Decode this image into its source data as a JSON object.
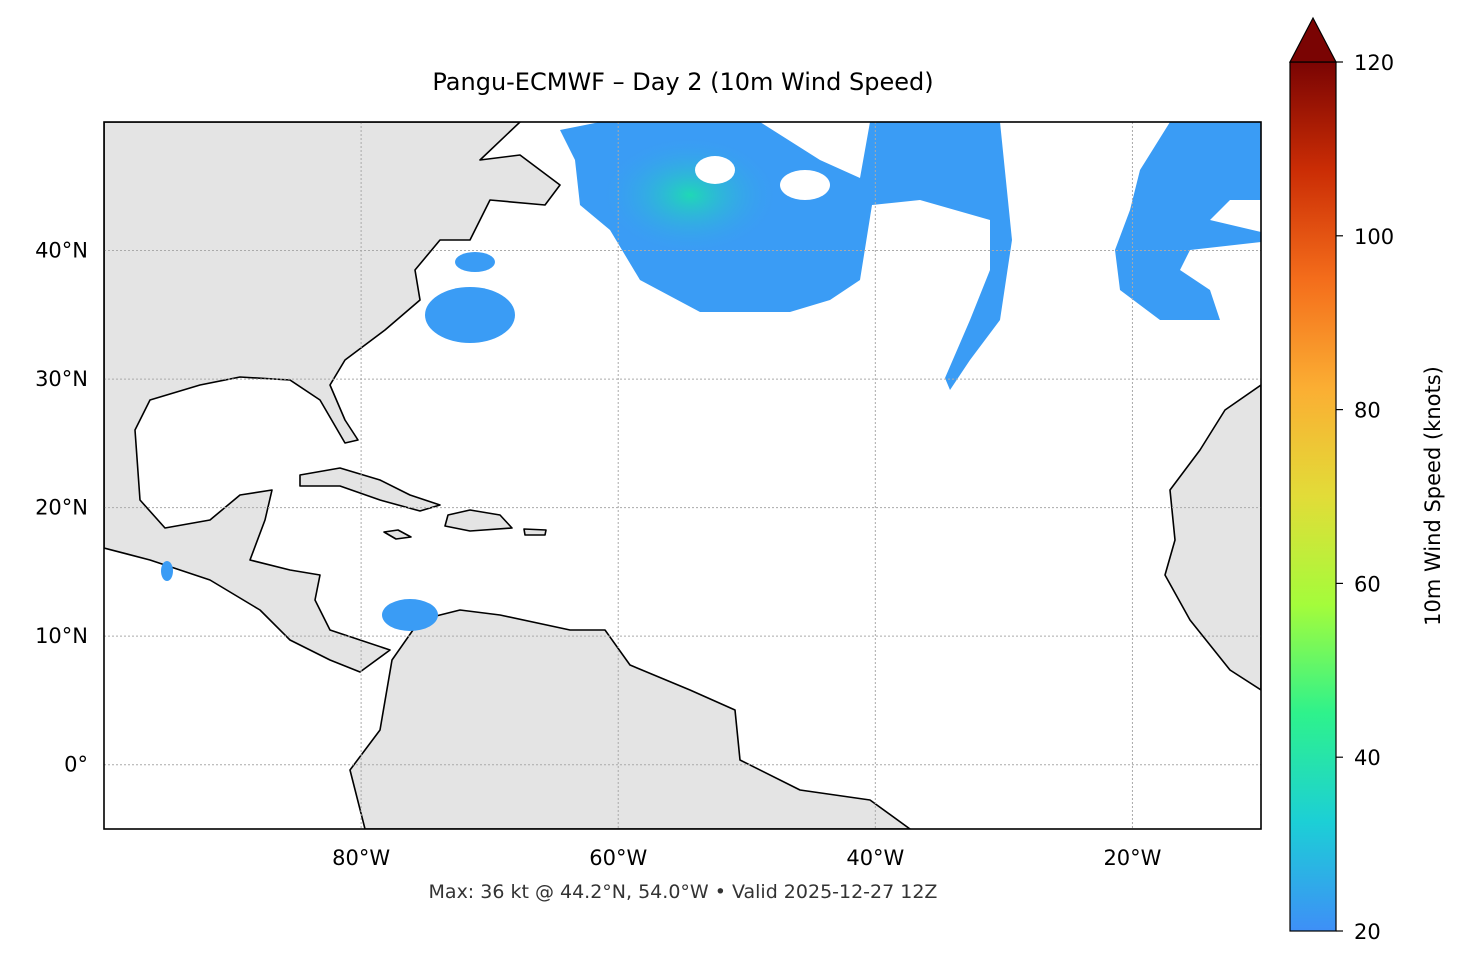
{
  "chart_data": {
    "type": "map",
    "title": "Pangu-ECMWF – Day 2 (10m Wind Speed)",
    "note": "Max: 36 kt @ 44.2°N, 54.0°W • Valid 2025-12-27 12Z",
    "xlim": [
      -100,
      -10
    ],
    "ylim": [
      -5,
      50
    ],
    "xticks": [
      {
        "value": -80,
        "label": "80°W"
      },
      {
        "value": -60,
        "label": "60°W"
      },
      {
        "value": -40,
        "label": "40°W"
      },
      {
        "value": -20,
        "label": "20°W"
      }
    ],
    "yticks": [
      {
        "value": 0,
        "label": "0°"
      },
      {
        "value": 10,
        "label": "10°N"
      },
      {
        "value": 20,
        "label": "20°N"
      },
      {
        "value": 30,
        "label": "30°N"
      },
      {
        "value": 40,
        "label": "40°N"
      }
    ],
    "grid": true,
    "land_color": "#e4e4e4",
    "colorbar": {
      "label": "10m Wind Speed (knots)",
      "lim": [
        20,
        120
      ],
      "ticks": [
        20,
        40,
        60,
        80,
        100,
        120
      ],
      "colors": [
        "#3e8ff7",
        "#1ccfd6",
        "#2ef28c",
        "#a4fc3b",
        "#e2dc38",
        "#fbae33",
        "#f46d1b",
        "#cb2d05",
        "#7a0403"
      ]
    }
  }
}
